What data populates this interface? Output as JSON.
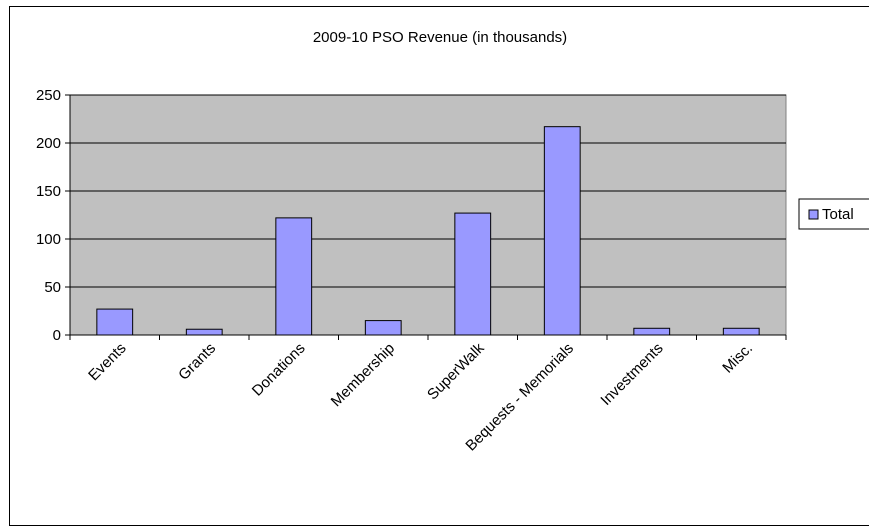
{
  "chart_data": {
    "type": "bar",
    "title": "2009-10 PSO Revenue (in thousands)",
    "categories": [
      "Events",
      "Grants",
      "Donations",
      "Membership",
      "SuperWalk",
      "Bequests - Memorials",
      "Investments",
      "Misc."
    ],
    "series": [
      {
        "name": "Total",
        "values": [
          27,
          6,
          122,
          15,
          127,
          217,
          7,
          7
        ],
        "color": "#9999ff"
      }
    ],
    "ylim": [
      0,
      250
    ],
    "yticks": [
      0,
      50,
      100,
      150,
      200,
      250
    ],
    "grid": true,
    "plot_background": "#c0c0c0",
    "legend_position": "right"
  }
}
